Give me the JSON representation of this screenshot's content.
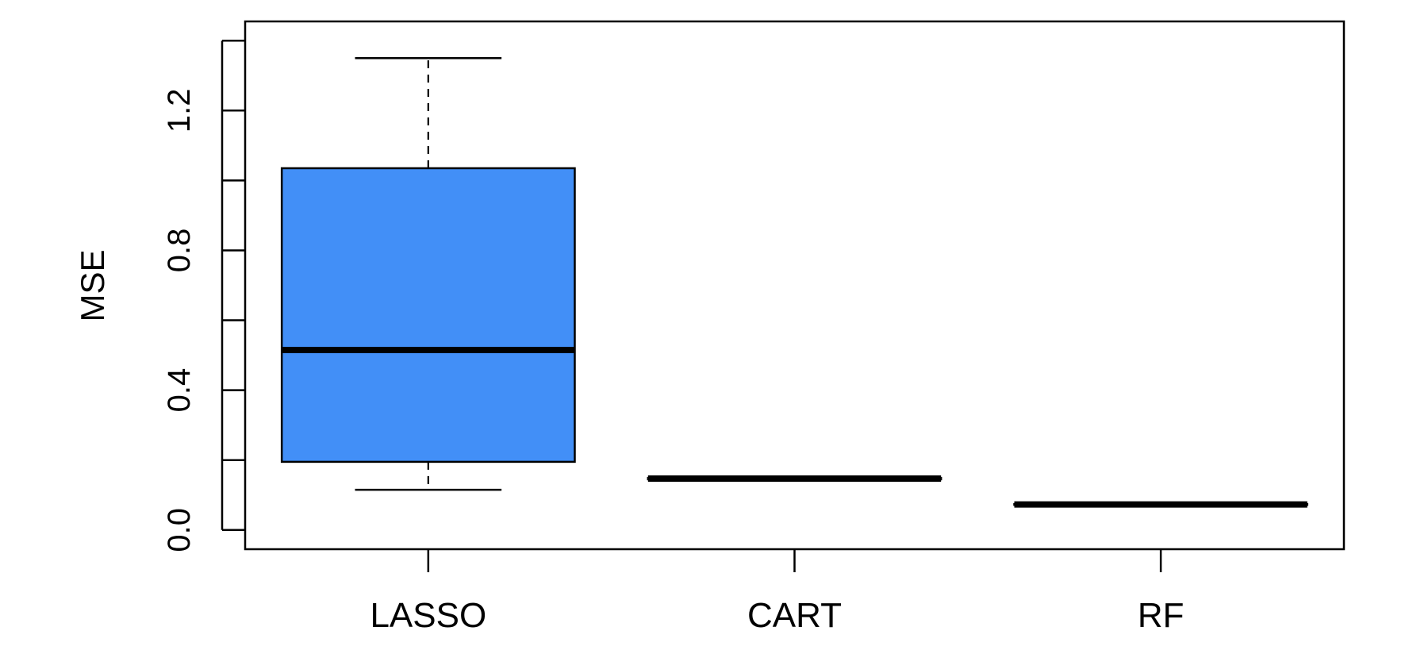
{
  "chart_data": {
    "type": "boxplot",
    "title": "",
    "xlabel": "",
    "ylabel": "MSE",
    "ylim": [
      -0.055,
      1.455
    ],
    "yticks": [
      0.0,
      0.2,
      0.4,
      0.6,
      0.8,
      1.0,
      1.2,
      1.4
    ],
    "ytick_labels": [
      "0.0",
      "0.4",
      "0.8",
      "1.2"
    ],
    "categories": [
      "LASSO",
      "CART",
      "RF"
    ],
    "boxes": [
      {
        "name": "LASSO",
        "min": 0.115,
        "q1": 0.195,
        "median": 0.515,
        "q3": 1.035,
        "max": 1.35,
        "fill": "#428ff7"
      },
      {
        "name": "CART",
        "min": 0.145,
        "q1": 0.145,
        "median": 0.147,
        "q3": 0.149,
        "max": 0.149,
        "fill": "#428ff7"
      },
      {
        "name": "RF",
        "min": 0.07,
        "q1": 0.072,
        "median": 0.073,
        "q3": 0.074,
        "max": 0.074,
        "fill": "#428ff7"
      }
    ],
    "grid": false,
    "legend": "none"
  }
}
